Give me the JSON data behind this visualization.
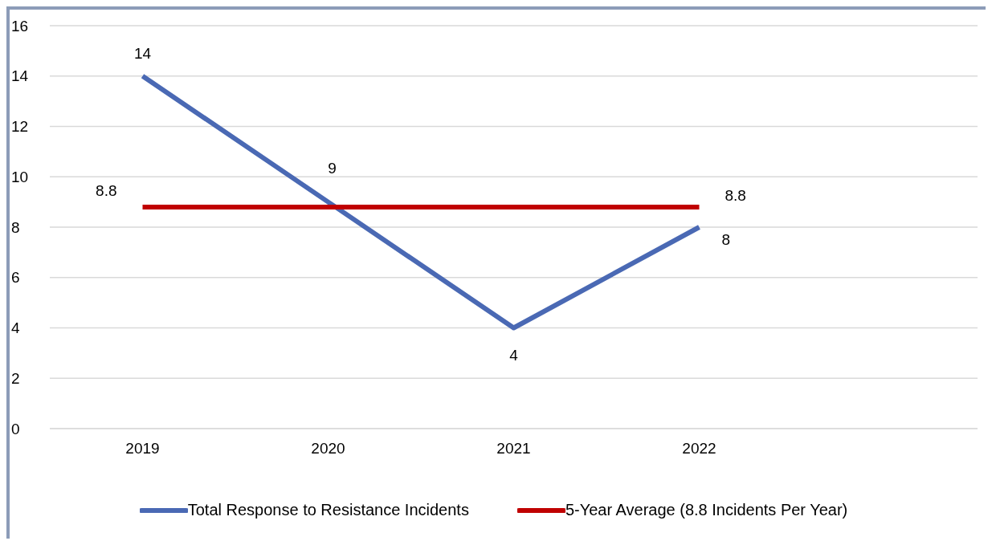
{
  "chart_data": {
    "type": "line",
    "categories": [
      "2019",
      "2020",
      "2021",
      "2022",
      null
    ],
    "series": [
      {
        "name": "Total Response to Resistance Incidents",
        "color": "#4a69b4",
        "values": [
          14,
          9,
          4,
          8,
          null
        ],
        "value_labels": [
          "14",
          "9",
          "4",
          "8",
          null
        ]
      },
      {
        "name": "5-Year Average (8.8 Incidents Per Year)",
        "color": "#c00000",
        "values": [
          8.8,
          8.8,
          8.8,
          8.8,
          null
        ],
        "value_labels": [
          "8.8",
          null,
          null,
          "8.8",
          null
        ]
      }
    ],
    "ylim": [
      0,
      16
    ],
    "yticks": [
      0,
      2,
      4,
      6,
      8,
      10,
      12,
      14,
      16
    ],
    "grid": "y",
    "legend": "bottom",
    "marker": "none",
    "line_style": "solid"
  }
}
